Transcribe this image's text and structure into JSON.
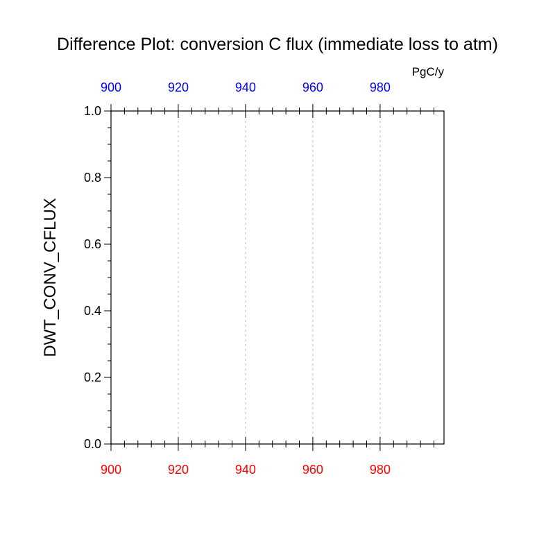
{
  "chart_data": {
    "type": "line",
    "title": "Difference Plot: conversion C flux (immediate loss to atm)",
    "units": "PgC/y",
    "ylabel": "DWT_CONV_CFLUX",
    "xlabel": "",
    "xlim": [
      900,
      999
    ],
    "ylim": [
      0.0,
      1.0
    ],
    "x_ticks_bottom": [
      900,
      920,
      940,
      960,
      980
    ],
    "x_ticks_top": [
      900,
      920,
      940,
      960,
      980
    ],
    "y_ticks": [
      "0.0",
      "0.2",
      "0.4",
      "0.6",
      "0.8",
      "1.0"
    ],
    "x_tick_labels_bottom": [
      "900",
      "920",
      "940",
      "960",
      "980"
    ],
    "x_tick_labels_top": [
      "900",
      "920",
      "940",
      "960",
      "980"
    ],
    "grid": "vertical dashed at major x ticks",
    "series": [],
    "colors": {
      "bottom_axis_labels": "#ff0000",
      "top_axis_labels": "#0000ff",
      "axes": "#000000",
      "grid": "#bbbbbb"
    }
  }
}
